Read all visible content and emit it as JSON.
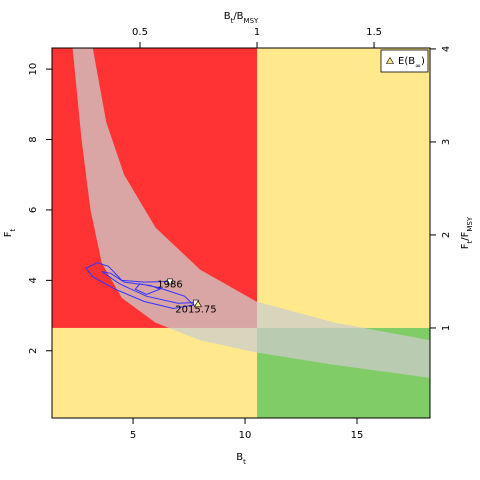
{
  "chart_data": {
    "type": "kobe",
    "x_label": [
      {
        "t": "B"
      },
      {
        "t": "t",
        "sub": true
      }
    ],
    "y_label": [
      {
        "t": "F"
      },
      {
        "t": "t",
        "sub": true
      }
    ],
    "x2_label": [
      {
        "t": "B"
      },
      {
        "t": "t",
        "sub": true
      },
      {
        "t": "/B"
      },
      {
        "t": "MSY",
        "sub": true
      }
    ],
    "y2_label": [
      {
        "t": "F"
      },
      {
        "t": "t",
        "sub": true
      },
      {
        "t": "/F"
      },
      {
        "t": "MSY",
        "sub": true
      }
    ],
    "xlim": [
      1.38,
      18.26
    ],
    "xticks": [
      5,
      10,
      15
    ],
    "ylim": [
      0.09,
      10.6
    ],
    "yticks": [
      2,
      4,
      6,
      8,
      10
    ],
    "x2lim": [
      0.124,
      1.739
    ],
    "x2ticks": [
      0.5,
      1,
      1.5
    ],
    "y2lim": [
      0.032,
      4.01
    ],
    "y2ticks": [
      1,
      2,
      3,
      4
    ],
    "quadrant_split": {
      "x2": 1,
      "y2": 1
    },
    "quadrant_colors": {
      "overfished_overfishing": "#ff3333",
      "overfishing_only": "#ffe98c",
      "overfished_only": "#ffe98c",
      "healthy": "#80cc66"
    },
    "band": {
      "color": "#cccccc",
      "lower_b": [
        2.3,
        2.7,
        3.1,
        3.6,
        4.5,
        6,
        8,
        10.5,
        14,
        18.26
      ],
      "lower_f": [
        10.6,
        8,
        6,
        4.5,
        3.5,
        2.8,
        2.3,
        1.95,
        1.6,
        1.23
      ],
      "upper_b": [
        3.2,
        3.8,
        4.6,
        6,
        8,
        10.5,
        14,
        18.26
      ],
      "upper_f": [
        10.6,
        8.5,
        7,
        5.5,
        4.3,
        3.4,
        2.8,
        2.3
      ]
    },
    "trajectory": {
      "color": "#3333ff",
      "b": [
        6.65,
        5.5,
        4.5,
        3.9,
        3.4,
        2.9,
        3.2,
        4.2,
        5.5,
        6.8,
        7.7,
        7.3,
        6.1,
        5.3,
        5.1,
        5.6,
        6.2,
        5.8,
        4.6,
        4.0,
        3.6,
        4.4,
        5.6,
        7.0,
        7.81
      ],
      "f": [
        3.97,
        3.95,
        4.0,
        4.4,
        4.5,
        4.35,
        4.1,
        3.75,
        3.4,
        3.2,
        3.3,
        3.55,
        3.8,
        3.9,
        3.75,
        3.6,
        3.75,
        3.85,
        3.95,
        4.2,
        4.25,
        3.9,
        3.55,
        3.35,
        3.37
      ]
    },
    "start_label": "1986",
    "end_label": "2015.75",
    "expected": {
      "b": 7.9,
      "f": 3.32,
      "color": "#ffe98c"
    },
    "legend": [
      {
        "t": "E(B"
      },
      {
        "t": "∞",
        "sub": true
      },
      {
        "t": ")"
      }
    ],
    "legend_position": "top-right"
  }
}
